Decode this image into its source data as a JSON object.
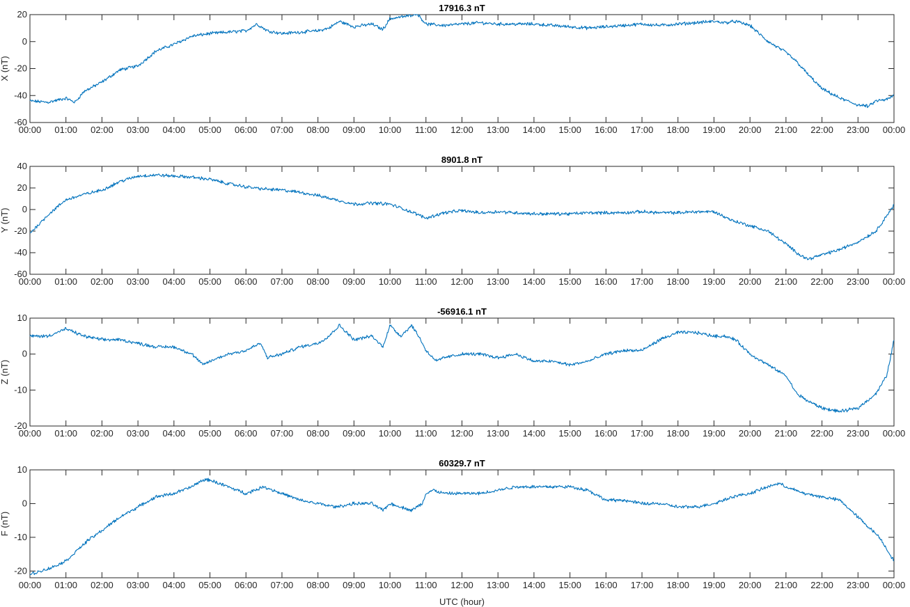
{
  "chart_data": {
    "type": "line",
    "xlabel": "UTC (hour)",
    "x_ticks": [
      "00:00",
      "01:00",
      "02:00",
      "03:00",
      "04:00",
      "05:00",
      "06:00",
      "07:00",
      "08:00",
      "09:00",
      "10:00",
      "11:00",
      "12:00",
      "13:00",
      "14:00",
      "15:00",
      "16:00",
      "17:00",
      "18:00",
      "19:00",
      "20:00",
      "21:00",
      "22:00",
      "23:00",
      "00:00"
    ],
    "xlim": [
      0,
      24
    ],
    "grid": false,
    "line_color": "#0072BD",
    "panels": [
      {
        "title": "17916.3 nT",
        "ylabel": "X (nT)",
        "ylim": [
          -60,
          20
        ],
        "y_ticks": [
          20,
          0,
          -20,
          -40,
          -60
        ],
        "series": [
          {
            "x": [
              0,
              0.5,
              1,
              1.25,
              1.5,
              2,
              2.5,
              3,
              3.5,
              4,
              4.5,
              5,
              5.5,
              6,
              6.3,
              6.6,
              7,
              7.5,
              8,
              8.3,
              8.6,
              9,
              9.5,
              9.8,
              10,
              10.5,
              10.75,
              11,
              11.5,
              12,
              12.5,
              13,
              13.5,
              14,
              14.5,
              15,
              15.5,
              16,
              16.5,
              17,
              17.5,
              18,
              18.5,
              19,
              19.3,
              19.6,
              20,
              20.5,
              21,
              21.3,
              21.6,
              22,
              22.5,
              23,
              23.3,
              23.5,
              23.8,
              24
            ],
            "y": [
              -44,
              -45,
              -42,
              -45,
              -37,
              -30,
              -21,
              -18,
              -7,
              -2,
              4,
              6,
              7,
              8,
              13,
              8,
              6,
              7,
              8,
              10,
              15,
              11,
              13,
              9,
              17,
              19,
              21,
              13,
              12,
              13,
              14,
              13,
              13,
              13,
              12,
              11,
              10,
              11,
              12,
              13,
              12,
              13,
              14,
              15,
              14,
              15,
              12,
              0,
              -8,
              -15,
              -24,
              -35,
              -42,
              -47,
              -48,
              -44,
              -43,
              -40
            ]
          }
        ]
      },
      {
        "title": "8901.8 nT",
        "ylabel": "Y (nT)",
        "ylim": [
          -60,
          40
        ],
        "y_ticks": [
          40,
          20,
          0,
          -20,
          -40,
          -60
        ],
        "series": [
          {
            "x": [
              0,
              0.5,
              1,
              1.5,
              2,
              2.5,
              3,
              3.5,
              4,
              4.5,
              5,
              5.5,
              6,
              6.5,
              7,
              7.5,
              8,
              8.5,
              9,
              9.5,
              10,
              10.5,
              10.8,
              11,
              11.5,
              12,
              12.5,
              13,
              13.5,
              14,
              14.5,
              15,
              15.5,
              16,
              16.5,
              17,
              17.5,
              18,
              18.5,
              19,
              19.5,
              20,
              20.5,
              21,
              21.3,
              21.6,
              22,
              22.5,
              23,
              23.5,
              24
            ],
            "y": [
              -22,
              -5,
              9,
              14,
              18,
              26,
              31,
              32,
              31,
              30,
              28,
              24,
              21,
              19,
              18,
              16,
              13,
              9,
              5,
              6,
              5,
              -1,
              -5,
              -8,
              -3,
              -1,
              -3,
              -2,
              -3,
              -4,
              -4,
              -4,
              -3,
              -3,
              -3,
              -2,
              -3,
              -3,
              -2,
              -2,
              -10,
              -15,
              -20,
              -32,
              -40,
              -46,
              -42,
              -37,
              -30,
              -20,
              4
            ]
          }
        ]
      },
      {
        "title": "-56916.1 nT",
        "ylabel": "Z (nT)",
        "ylim": [
          -20,
          10
        ],
        "y_ticks": [
          10,
          0,
          -10,
          -20
        ],
        "series": [
          {
            "x": [
              0,
              0.5,
              1,
              1.5,
              2,
              2.5,
              3,
              3.5,
              4,
              4.5,
              4.8,
              5,
              5.5,
              6,
              6.4,
              6.6,
              7,
              7.5,
              8,
              8.3,
              8.6,
              9,
              9.5,
              9.8,
              10,
              10.3,
              10.6,
              10.8,
              11,
              11.3,
              11.5,
              12,
              12.5,
              13,
              13.5,
              14,
              14.5,
              15,
              15.5,
              16,
              16.5,
              17,
              17.5,
              18,
              18.5,
              19,
              19.3,
              19.6,
              20,
              20.5,
              21,
              21.3,
              21.6,
              22,
              22.5,
              23,
              23.5,
              23.8,
              24
            ],
            "y": [
              5,
              5,
              7,
              5,
              4,
              4,
              3,
              2,
              2,
              0,
              -3,
              -2,
              0,
              1,
              3,
              -1,
              0,
              2,
              3,
              5,
              8,
              4,
              5,
              2,
              8,
              5,
              8,
              5,
              1,
              -2,
              -1,
              0,
              0,
              -1,
              0,
              -2,
              -2,
              -3,
              -2,
              0,
              1,
              1,
              4,
              6,
              6,
              5,
              5,
              4,
              0,
              -3,
              -6,
              -11,
              -13,
              -15,
              -16,
              -15,
              -11,
              -6,
              4
            ]
          }
        ]
      },
      {
        "title": "60329.7 nT",
        "ylabel": "F (nT)",
        "ylim": [
          -22,
          10
        ],
        "y_ticks": [
          10,
          0,
          -10,
          -20
        ],
        "series": [
          {
            "x": [
              0,
              0.3,
              0.6,
              1,
              1.3,
              1.6,
              2,
              2.5,
              3,
              3.5,
              4,
              4.5,
              4.8,
              5,
              5.5,
              6,
              6.5,
              7,
              7.5,
              8,
              8.5,
              9,
              9.5,
              9.8,
              10,
              10.3,
              10.6,
              10.9,
              11,
              11.2,
              11.5,
              12,
              12.5,
              13,
              13.5,
              14,
              14.5,
              15,
              15.5,
              16,
              16.5,
              17,
              17.5,
              18,
              18.5,
              19,
              19.5,
              20,
              20.5,
              20.8,
              21,
              21.5,
              22,
              22.5,
              23,
              23.3,
              23.6,
              24
            ],
            "y": [
              -21,
              -20,
              -19,
              -17,
              -14,
              -11,
              -8,
              -4,
              -1,
              2,
              3,
              5,
              7,
              7,
              5,
              3,
              5,
              3,
              1,
              0,
              -1,
              0,
              0,
              -2,
              0,
              -1,
              -2,
              0,
              3,
              4,
              3,
              3,
              3,
              4,
              5,
              5,
              5,
              5,
              4,
              1,
              1,
              0,
              0,
              -1,
              -1,
              0,
              2,
              3,
              5,
              6,
              5,
              3,
              2,
              1,
              -4,
              -7,
              -10,
              -17
            ]
          }
        ]
      }
    ]
  }
}
